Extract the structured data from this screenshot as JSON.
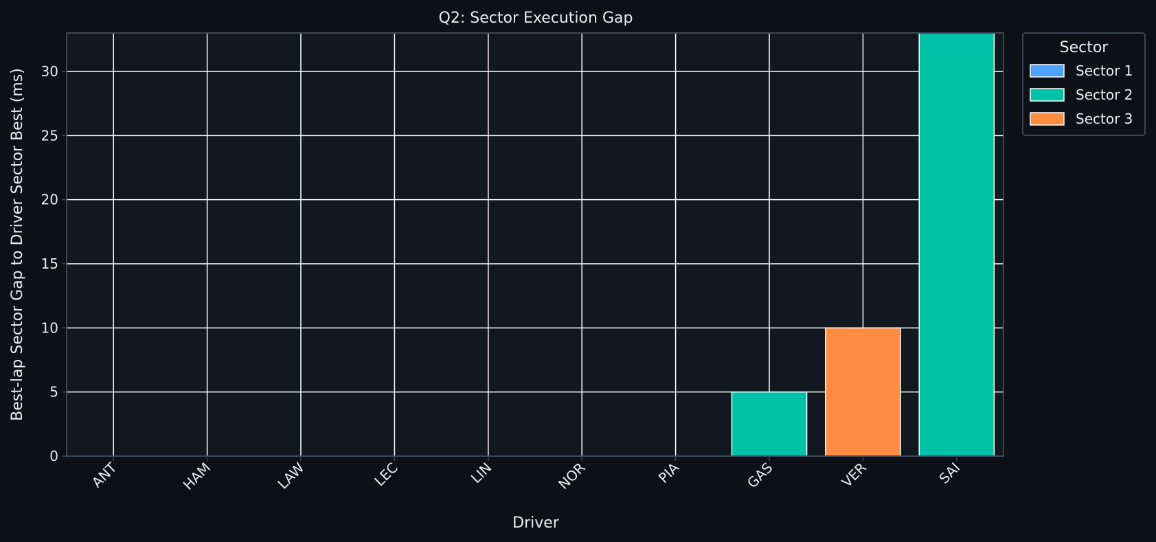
{
  "colors": {
    "page_bg": "#0d1117",
    "plot_bg": "#111820",
    "grid": "#ffffff",
    "spine": "#3d4654",
    "text": "#e6edf3",
    "bar_edge": "#ffffff"
  },
  "chart_data": {
    "type": "bar",
    "title": "Q2: Sector Execution Gap",
    "xlabel": "Driver",
    "ylabel": "Best-lap Sector Gap to Driver Sector Best (ms)",
    "categories": [
      "ANT",
      "HAM",
      "LAW",
      "LEC",
      "LIN",
      "NOR",
      "PIA",
      "GAS",
      "VER",
      "SAI"
    ],
    "values": [
      0,
      0,
      0,
      0,
      0,
      0,
      0,
      5,
      10,
      33
    ],
    "bar_sector": [
      "Sector 1",
      "Sector 1",
      "Sector 1",
      "Sector 1",
      "Sector 1",
      "Sector 1",
      "Sector 1",
      "Sector 2",
      "Sector 3",
      "Sector 2"
    ],
    "ylim": [
      0,
      33
    ],
    "yticks": [
      0,
      5,
      10,
      15,
      20,
      25,
      30
    ],
    "grid": true,
    "legend": {
      "title": "Sector",
      "placement": "outside-top-right",
      "entries": [
        {
          "name": "Sector 1",
          "color": "#4da3ff"
        },
        {
          "name": "Sector 2",
          "color": "#00c2a8"
        },
        {
          "name": "Sector 3",
          "color": "#ff8c42"
        }
      ]
    }
  }
}
